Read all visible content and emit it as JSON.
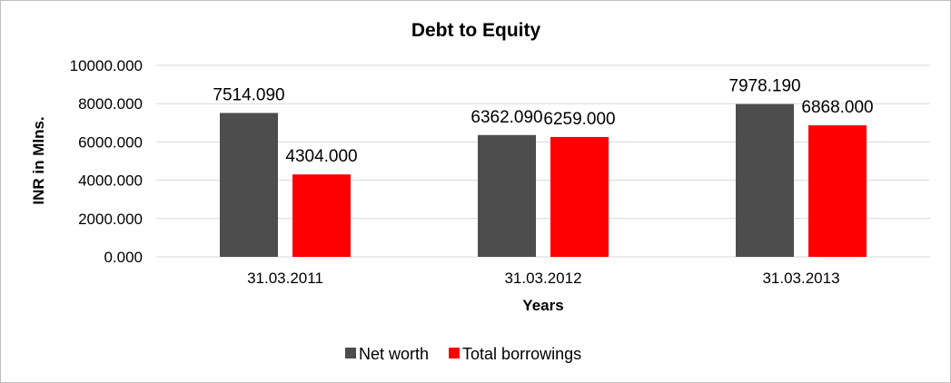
{
  "chart_data": {
    "type": "bar",
    "title": "Debt to Equity",
    "xlabel": "Years",
    "ylabel": "INR in Mlns.",
    "categories": [
      "31.03.2011",
      "31.03.2012",
      "31.03.2013"
    ],
    "series": [
      {
        "name": "Net worth",
        "values": [
          7514.09,
          6362.09,
          7978.19
        ],
        "labels": [
          "7514.090",
          "6362.090",
          "7978.190"
        ],
        "color": "#4d4d4d"
      },
      {
        "name": "Total borrowings",
        "values": [
          4304.0,
          6259.0,
          6868.0
        ],
        "labels": [
          "4304.000",
          "6259.000",
          "6868.000"
        ],
        "color": "#ff0000"
      }
    ],
    "ylim": [
      0,
      10000
    ],
    "yticks": [
      0,
      2000,
      4000,
      6000,
      8000,
      10000
    ],
    "ytick_labels": [
      "0.000",
      "2000.000",
      "4000.000",
      "6000.000",
      "8000.000",
      "10000.000"
    ],
    "grid": true,
    "legend_position": "bottom"
  }
}
